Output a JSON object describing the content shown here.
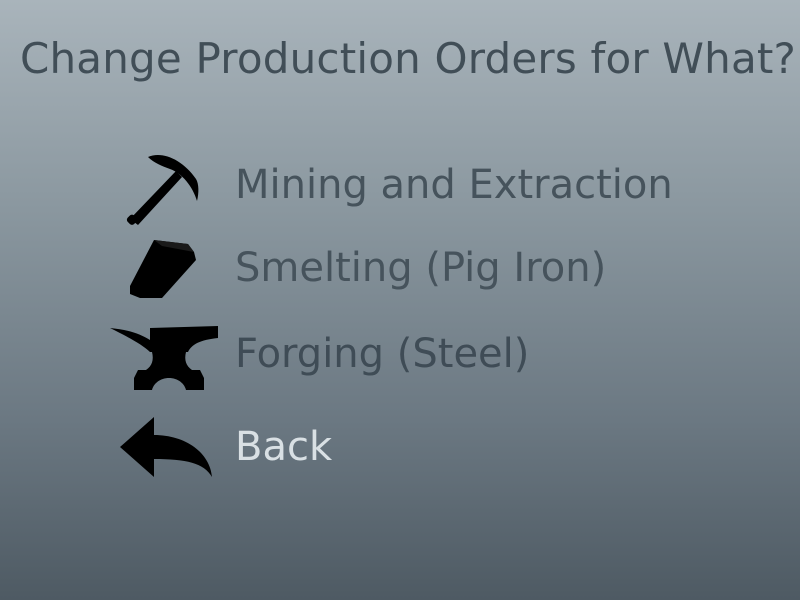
{
  "screen": {
    "title": "Change Production Orders for What?"
  },
  "menu": {
    "items": [
      {
        "id": "mining",
        "label": "Mining and Extraction",
        "icon": "pickaxe-icon"
      },
      {
        "id": "smelting",
        "label": "Smelting (Pig Iron)",
        "icon": "ingot-icon"
      },
      {
        "id": "forging",
        "label": "Forging (Steel)",
        "icon": "anvil-icon"
      },
      {
        "id": "back",
        "label": "Back",
        "icon": "back-arrow-icon"
      }
    ]
  },
  "colors": {
    "title_text": "#414e57",
    "item_text": "#46535c",
    "back_text": "#d9e0e4",
    "icon_fill": "#000000",
    "background_top": "#a9b4bb",
    "background_bottom": "#4e5a63"
  }
}
